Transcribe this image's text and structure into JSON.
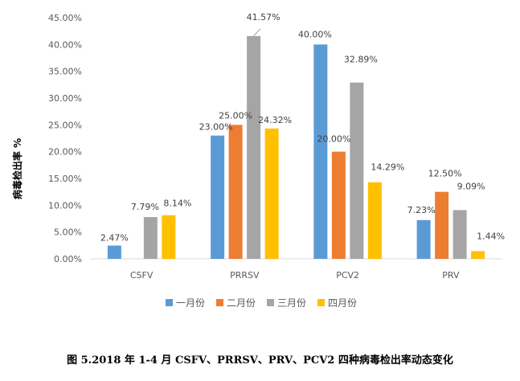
{
  "chart_data": {
    "type": "bar",
    "categories": [
      "CSFV",
      "PRRSV",
      "PCV2",
      "PRV"
    ],
    "series": [
      {
        "name": "一月份",
        "color": "#5B9BD5",
        "values": [
          2.47,
          23.0,
          40.0,
          7.23
        ]
      },
      {
        "name": "二月份",
        "color": "#ED7D31",
        "values": [
          null,
          25.0,
          20.0,
          12.5
        ]
      },
      {
        "name": "三月份",
        "color": "#A5A5A5",
        "values": [
          7.79,
          41.57,
          32.89,
          9.09
        ]
      },
      {
        "name": "四月份",
        "color": "#FFC000",
        "values": [
          8.14,
          24.32,
          14.29,
          1.44
        ]
      }
    ],
    "data_labels": [
      [
        "2.47%",
        "23.00%",
        "40.00%",
        "7.23%"
      ],
      [
        "",
        "25.00%",
        "20.00%",
        "12.50%"
      ],
      [
        "7.79%",
        "41.57%",
        "32.89%",
        "9.09%"
      ],
      [
        "8.14%",
        "24.32%",
        "14.29%",
        "1.44%"
      ]
    ],
    "ylabel": "病毒检出率 %",
    "ylim": [
      0,
      45
    ],
    "yticks": [
      "0.00%",
      "5.00%",
      "10.00%",
      "15.00%",
      "20.00%",
      "25.00%",
      "30.00%",
      "35.00%",
      "40.00%",
      "45.00%"
    ],
    "grid": false,
    "legend_position": "bottom"
  },
  "caption": "图 5.2018 年 1-4 月 CSFV、PRRSV、PRV、PCV2 四种病毒检出率动态变化"
}
